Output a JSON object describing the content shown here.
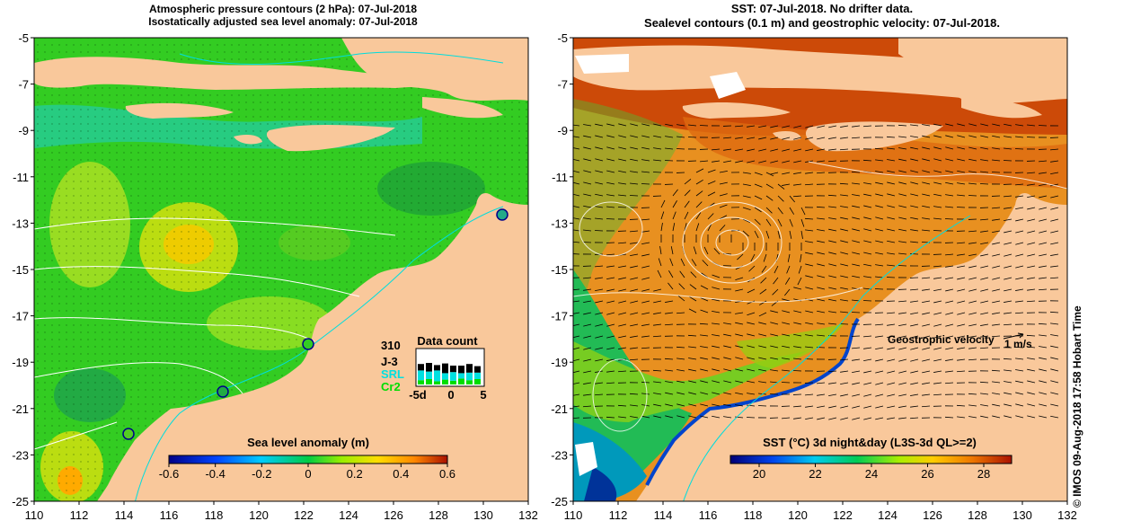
{
  "left_panel": {
    "title_line1": "Atmospheric pressure contours (2 hPa): 07-Jul-2018",
    "title_line2": "Isostatically adjusted sea level anomaly: 07-Jul-2018",
    "x_ticks": [
      "110",
      "112",
      "114",
      "116",
      "118",
      "120",
      "122",
      "124",
      "126",
      "128",
      "130",
      "132"
    ],
    "y_ticks": [
      "-5",
      "-7",
      "-9",
      "-11",
      "-13",
      "-15",
      "-17",
      "-19",
      "-21",
      "-23",
      "-25"
    ],
    "colorbar": {
      "label": "Sea level anomaly (m)",
      "ticks": [
        "-0.6",
        "-0.4",
        "-0.2",
        "0",
        "0.2",
        "0.4",
        "0.6"
      ]
    },
    "data_count": {
      "title": "Data count",
      "max_label": "310",
      "series": [
        {
          "name": "J-3",
          "color": "#000000"
        },
        {
          "name": "SRL",
          "color": "#00e0e0"
        },
        {
          "name": "Cr2",
          "color": "#00dd00"
        }
      ],
      "x_ticks": [
        "-5d",
        "0",
        "5"
      ]
    }
  },
  "right_panel": {
    "title_line1": "SST: 07-Jul-2018. No drifter data.",
    "title_line2": "Sealevel contours (0.1 m) and geostrophic velocity: 07-Jul-2018.",
    "x_ticks": [
      "110",
      "112",
      "114",
      "116",
      "118",
      "120",
      "122",
      "124",
      "126",
      "128",
      "130",
      "132"
    ],
    "y_ticks": [
      "-5",
      "-7",
      "-9",
      "-11",
      "-13",
      "-15",
      "-17",
      "-19",
      "-21",
      "-23",
      "-25"
    ],
    "velocity_legend": {
      "label": "Geostrophic velocity",
      "unit": "1 m/s"
    },
    "colorbar": {
      "label": "SST (°C) 3d night&day (L3S-3d QL>=2)",
      "ticks": [
        "20",
        "22",
        "24",
        "26",
        "28"
      ]
    }
  },
  "credit": "© IMOS 09-Aug-2018 17:58 Hobart Time",
  "colors": {
    "land": "#f9c89b",
    "sla_bg": "#33cc22",
    "sst_bg": "#e89020",
    "sst_warm": "#cc4400"
  }
}
